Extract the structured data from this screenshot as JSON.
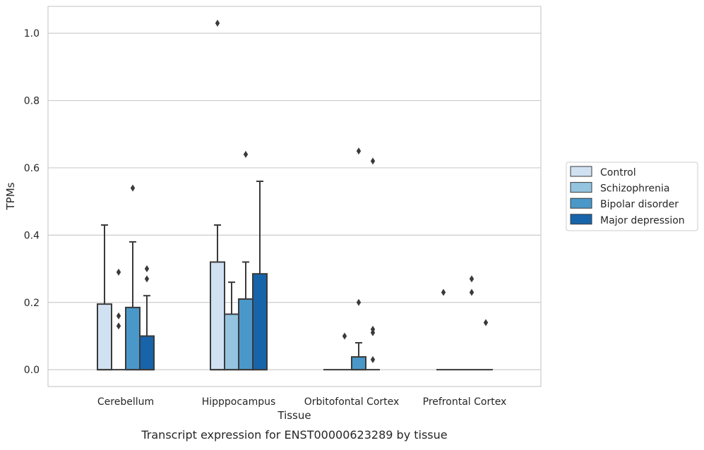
{
  "chart_data": {
    "type": "box",
    "title": "Transcript expression for ENST00000623289 by tissue",
    "xlabel": "Tissue",
    "ylabel": "TPMs",
    "ylim": [
      -0.05,
      1.08
    ],
    "yticks": [
      0.0,
      0.2,
      0.4,
      0.6,
      0.8,
      1.0
    ],
    "ytick_labels": [
      "0.0",
      "0.2",
      "0.4",
      "0.6",
      "0.8",
      "1.0"
    ],
    "grid": "horizontal",
    "legend_position": "right",
    "categories": [
      "Cerebellum",
      "Hipppocampus",
      "Orbitofontal Cortex",
      "Prefrontal Cortex"
    ],
    "series": [
      {
        "name": "Control",
        "color": "#d0e1f2",
        "boxes": [
          {
            "q1": 0.0,
            "median": 0.0,
            "q3": 0.195,
            "whislo": 0.0,
            "whishi": 0.43,
            "fliers": []
          },
          {
            "q1": 0.0,
            "median": 0.0,
            "q3": 0.32,
            "whislo": 0.0,
            "whishi": 0.43,
            "fliers": [
              1.03
            ]
          },
          {
            "q1": 0.0,
            "median": 0.0,
            "q3": 0.0,
            "whislo": 0.0,
            "whishi": 0.0,
            "fliers": []
          },
          {
            "q1": 0.0,
            "median": 0.0,
            "q3": 0.0,
            "whislo": 0.0,
            "whishi": 0.0,
            "fliers": [
              0.23
            ]
          }
        ]
      },
      {
        "name": "Schizophrenia",
        "color": "#94c4df",
        "boxes": [
          {
            "q1": 0.0,
            "median": 0.0,
            "q3": 0.0,
            "whislo": 0.0,
            "whishi": 0.0,
            "fliers": [
              0.29,
              0.16,
              0.13
            ]
          },
          {
            "q1": 0.0,
            "median": 0.0,
            "q3": 0.165,
            "whislo": 0.0,
            "whishi": 0.26,
            "fliers": []
          },
          {
            "q1": 0.0,
            "median": 0.0,
            "q3": 0.0,
            "whislo": 0.0,
            "whishi": 0.0,
            "fliers": [
              0.1
            ]
          },
          {
            "q1": 0.0,
            "median": 0.0,
            "q3": 0.0,
            "whislo": 0.0,
            "whishi": 0.0,
            "fliers": []
          }
        ]
      },
      {
        "name": "Bipolar disorder",
        "color": "#4a98c9",
        "boxes": [
          {
            "q1": 0.0,
            "median": 0.0,
            "q3": 0.185,
            "whislo": 0.0,
            "whishi": 0.38,
            "fliers": [
              0.54
            ]
          },
          {
            "q1": 0.0,
            "median": 0.0,
            "q3": 0.21,
            "whislo": 0.0,
            "whishi": 0.32,
            "fliers": [
              0.64
            ]
          },
          {
            "q1": 0.0,
            "median": 0.0,
            "q3": 0.038,
            "whislo": 0.0,
            "whishi": 0.08,
            "fliers": [
              0.65,
              0.2
            ]
          },
          {
            "q1": 0.0,
            "median": 0.0,
            "q3": 0.0,
            "whislo": 0.0,
            "whishi": 0.0,
            "fliers": [
              0.27,
              0.23
            ]
          }
        ]
      },
      {
        "name": "Major depression",
        "color": "#1764ab",
        "boxes": [
          {
            "q1": 0.0,
            "median": 0.0,
            "q3": 0.1,
            "whislo": 0.0,
            "whishi": 0.22,
            "fliers": [
              0.3,
              0.27
            ]
          },
          {
            "q1": 0.0,
            "median": 0.0,
            "q3": 0.285,
            "whislo": 0.0,
            "whishi": 0.56,
            "fliers": []
          },
          {
            "q1": 0.0,
            "median": 0.0,
            "q3": 0.0,
            "whislo": 0.0,
            "whishi": 0.0,
            "fliers": [
              0.62,
              0.12,
              0.11,
              0.03
            ]
          },
          {
            "q1": 0.0,
            "median": 0.0,
            "q3": 0.0,
            "whislo": 0.0,
            "whishi": 0.0,
            "fliers": [
              0.14
            ]
          }
        ]
      }
    ]
  }
}
